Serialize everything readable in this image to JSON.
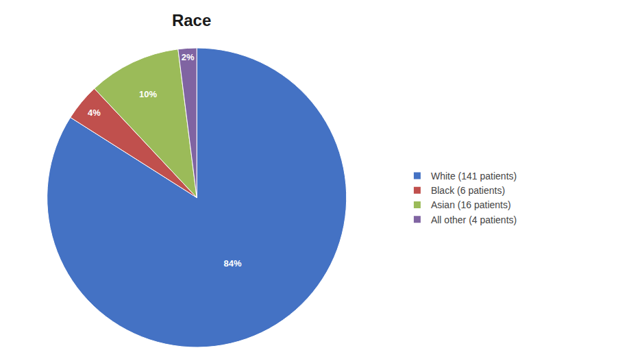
{
  "chart_data": {
    "type": "pie",
    "title": "Race",
    "categories": [
      "White (141 patients)",
      "Black (6 patients)",
      "Asian (16 patients)",
      "All other (4 patients)"
    ],
    "values": [
      84,
      4,
      10,
      2
    ],
    "value_labels": [
      "84%",
      "4%",
      "10%",
      "2%"
    ],
    "colors": [
      "#4472C4",
      "#C0504D",
      "#9BBB59",
      "#8064A2"
    ],
    "data_labels": true,
    "legend": "right"
  }
}
